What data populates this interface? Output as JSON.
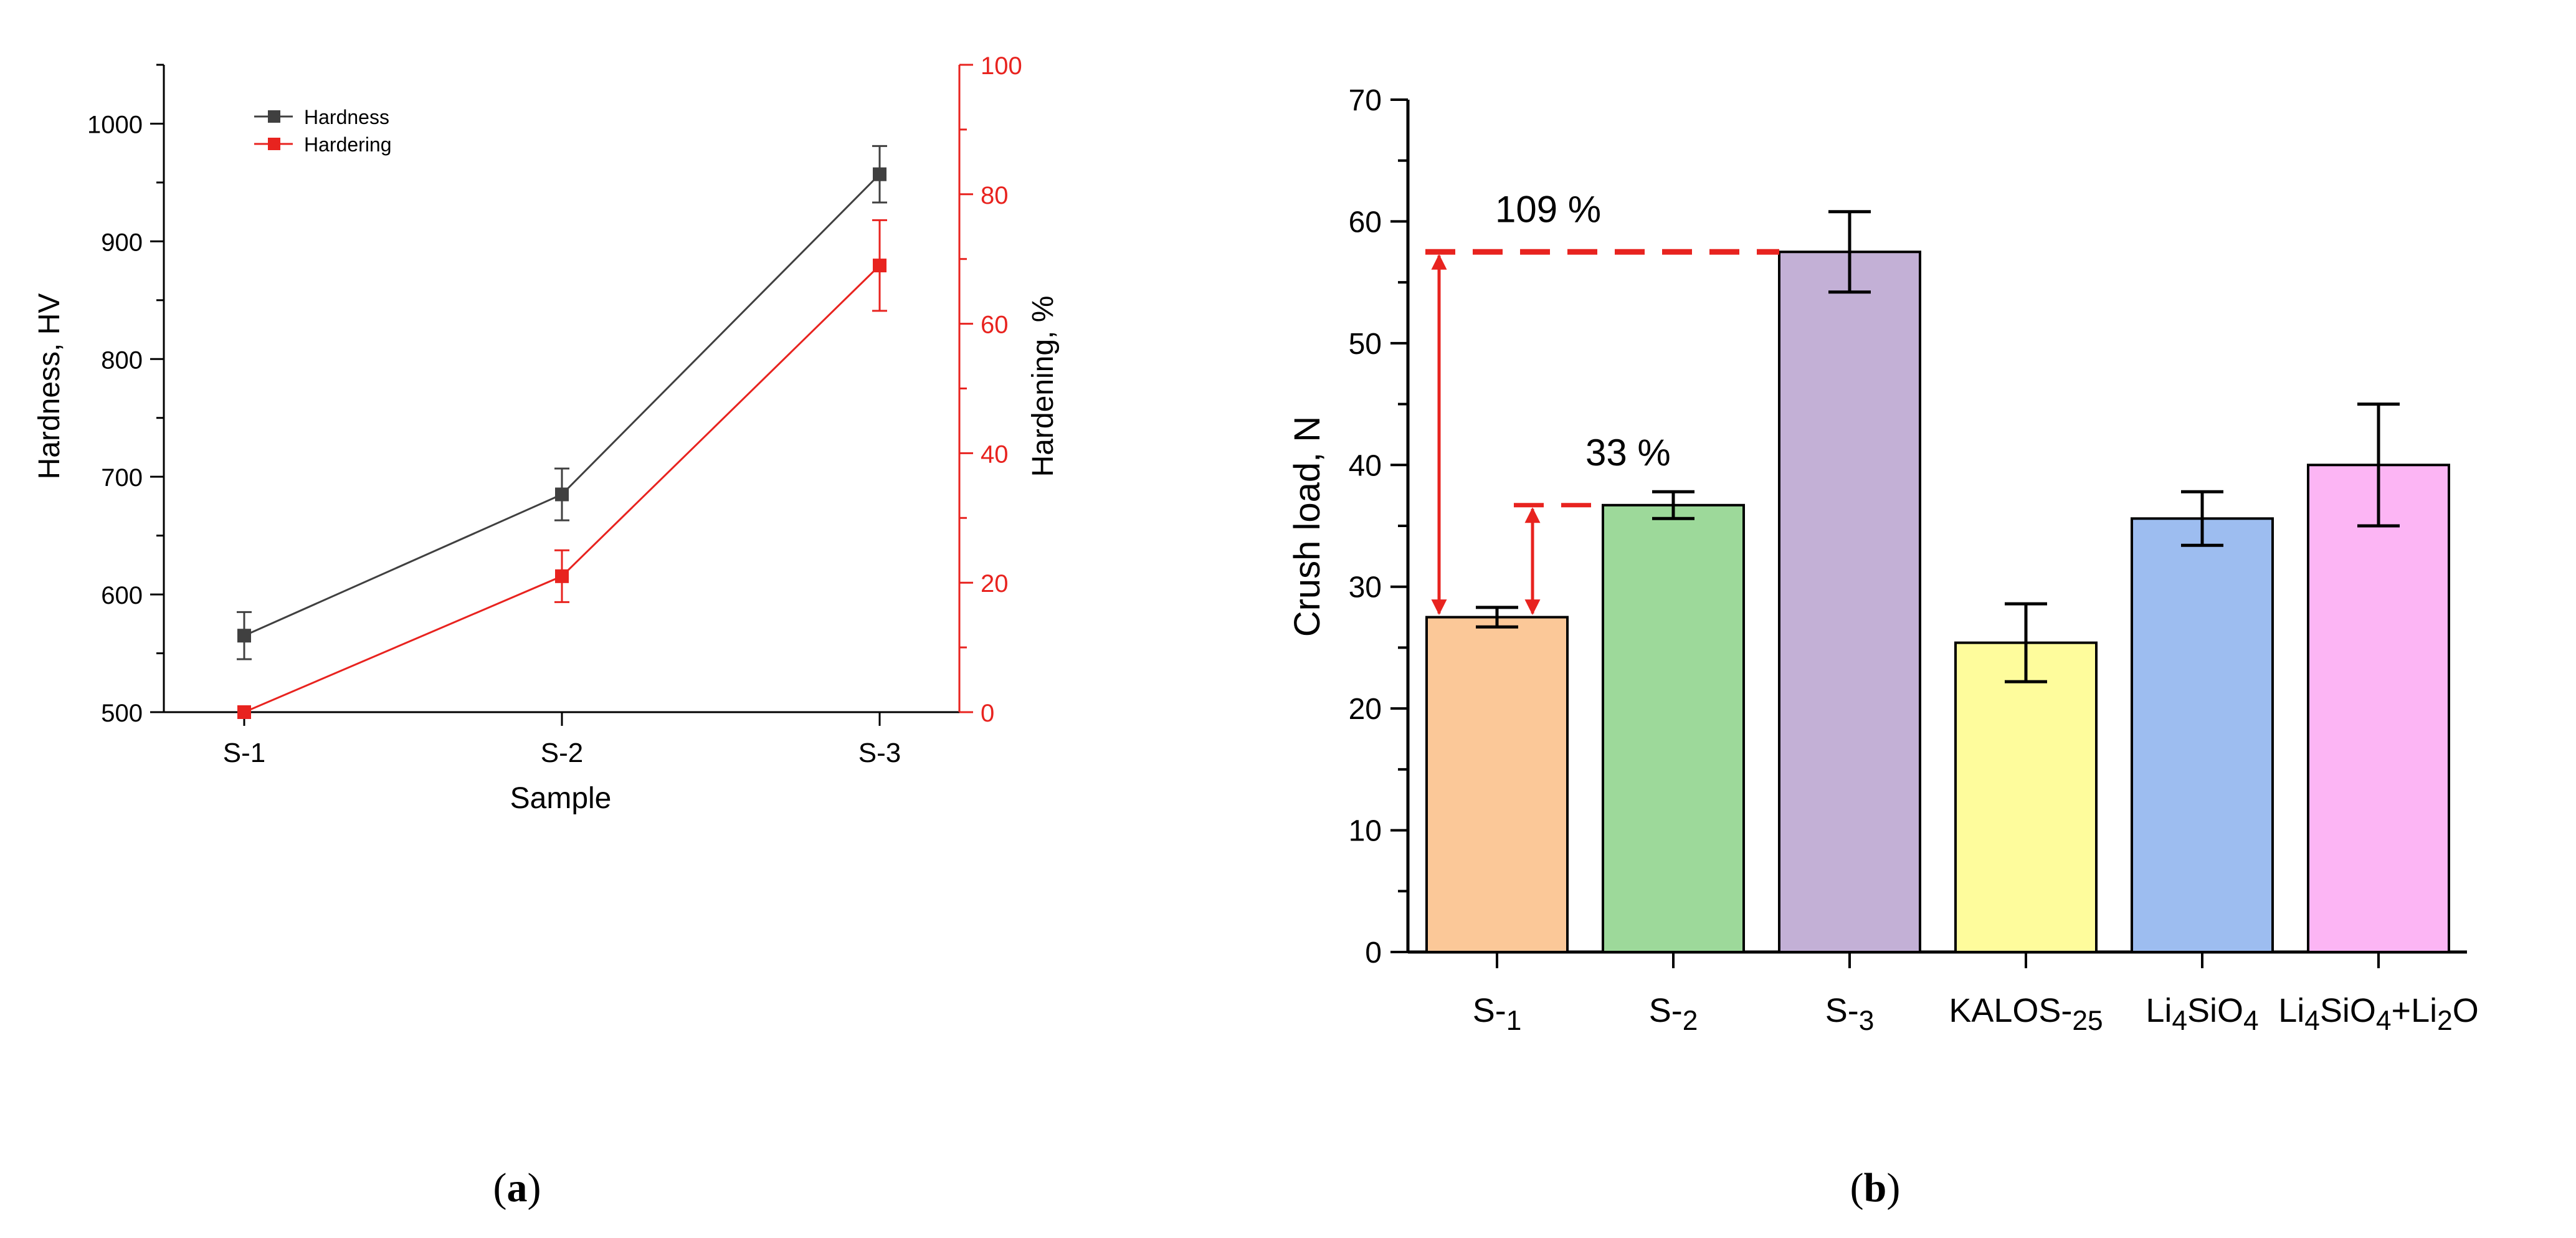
{
  "chart_data": [
    {
      "type": "line",
      "panel_label": "a",
      "xlabel": "Sample",
      "ylabel": "Hardness, HV",
      "y2label": "Hardening, %",
      "categories": [
        "S-1",
        "S-2",
        "S-3"
      ],
      "ylim": [
        500,
        1050
      ],
      "y2lim": [
        0,
        100
      ],
      "yticks": [
        "500",
        "600",
        "700",
        "800",
        "900",
        "1000"
      ],
      "y2ticks": [
        "0",
        "20",
        "40",
        "60",
        "80",
        "100"
      ],
      "legend": [
        "Hardness",
        "Hardering"
      ],
      "legend_position": "top-left",
      "series": [
        {
          "name": "Hardness",
          "axis": "left",
          "color": "#404040",
          "values": [
            565,
            685,
            957
          ],
          "errors": [
            20,
            22,
            24
          ]
        },
        {
          "name": "Hardering",
          "axis": "right",
          "color": "#e8231f",
          "values": [
            0,
            21,
            69
          ],
          "errors": [
            0,
            4,
            7
          ]
        }
      ]
    },
    {
      "type": "bar",
      "panel_label": "b",
      "xlabel": "",
      "ylabel": "Crush load, N",
      "ylim": [
        0,
        70
      ],
      "yticks": [
        "0",
        "10",
        "20",
        "30",
        "40",
        "50",
        "60",
        "70"
      ],
      "categories": [
        "S-1",
        "S-2",
        "S-3",
        "KALOS-25",
        "Li4SiO4",
        "Li4SiO4+Li2O"
      ],
      "values": [
        27.5,
        36.7,
        57.5,
        25.4,
        35.6,
        40.0
      ],
      "errors": [
        0.8,
        1.1,
        3.3,
        3.2,
        2.2,
        5.0
      ],
      "colors": [
        "#fbc898",
        "#9dd99a",
        "#c3b0d6",
        "#fefc9c",
        "#9dbdf0",
        "#fcb5f4"
      ],
      "annotations": [
        {
          "text": "109 %",
          "from": "S-1",
          "to": "S-3",
          "color": "#e8231f"
        },
        {
          "text": "33 %",
          "from": "S-1",
          "to": "S-2",
          "color": "#e8231f"
        }
      ]
    }
  ]
}
